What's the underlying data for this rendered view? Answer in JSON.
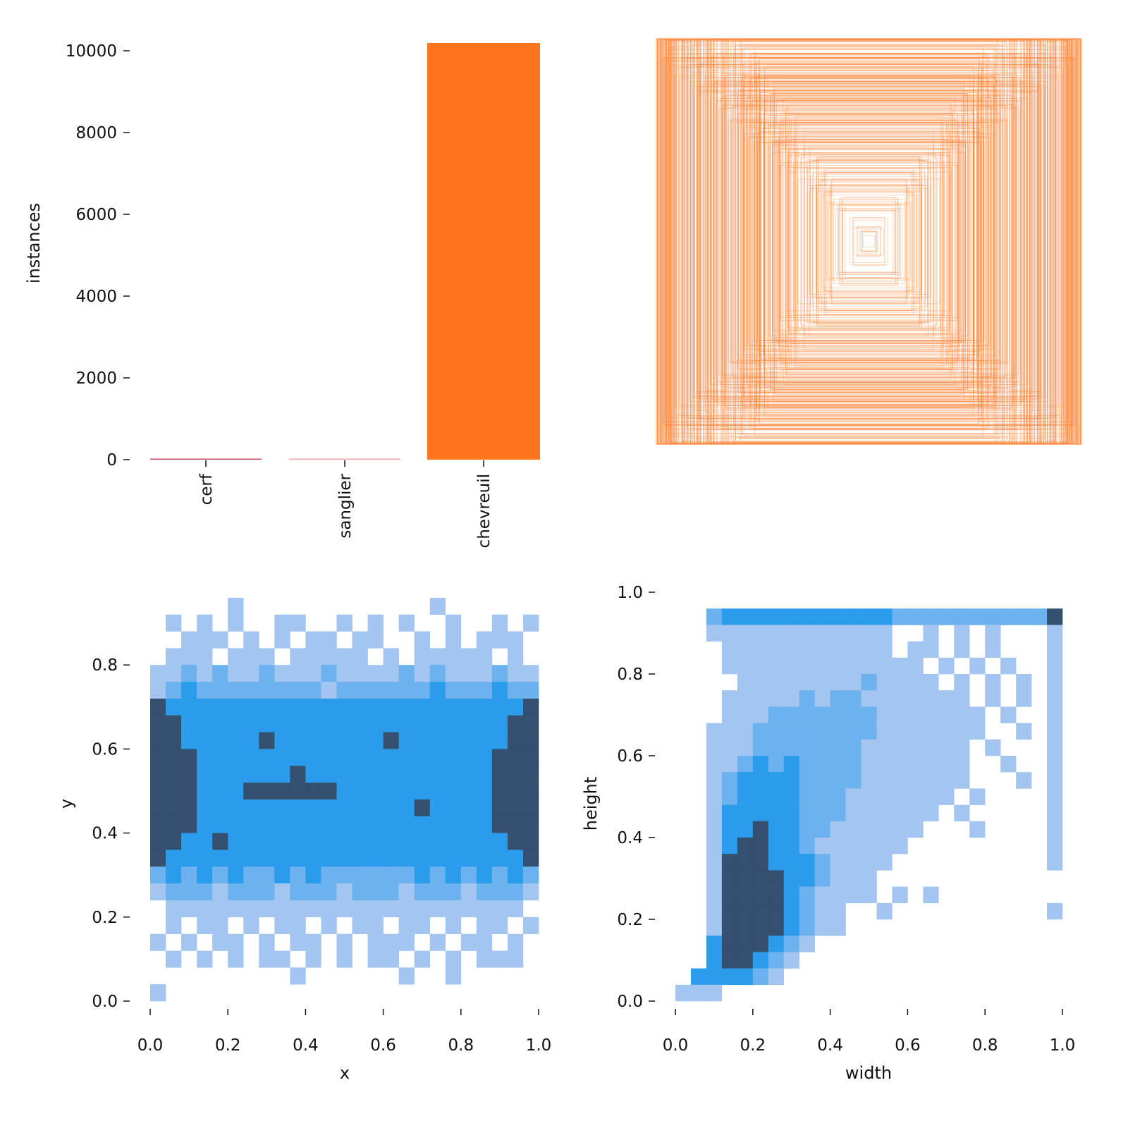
{
  "chart_data": [
    {
      "type": "bar",
      "name": "class-instances",
      "categories": [
        "cerf",
        "sanglier",
        "chevreuil"
      ],
      "values": [
        20,
        5,
        10190
      ],
      "colors": [
        "#d0475a",
        "#f2a3a8",
        "#fe7520"
      ],
      "xlabel": "",
      "ylabel": "instances",
      "ylim": [
        0,
        10200
      ],
      "yticks": [
        0,
        2000,
        4000,
        6000,
        8000,
        10000
      ],
      "ytick_labels": [
        "0",
        "2000",
        "4000",
        "6000",
        "8000",
        "10000"
      ]
    },
    {
      "type": "boxes",
      "name": "bounding-box-overlay",
      "description_values": {
        "box_count_approx": 500,
        "color": "#fe7520"
      },
      "xlim": [
        0,
        1
      ],
      "ylim": [
        0,
        1
      ]
    },
    {
      "type": "heatmap",
      "name": "xy-histogram",
      "xlabel": "x",
      "ylabel": "y",
      "xlim": [
        0,
        1
      ],
      "ylim": [
        0,
        0.96
      ],
      "xticks": [
        "0.0",
        "0.2",
        "0.4",
        "0.6",
        "0.8",
        "1.0"
      ],
      "yticks": [
        "0.0",
        "0.2",
        "0.4",
        "0.6",
        "0.8"
      ],
      "levels_note": "0=empty,1=low,2=medium,3=high,4=very high; rows from top (y=0.96) to bottom (y=0)",
      "grid": [
        "0000010000000000001000000",
        "0101010011001010100100101",
        "0011101010110110010101110",
        "0111011101111101011111010",
        "1121211211121111212111211",
        "1232222222212222223222322",
        "4333333333333333333333334",
        "4433333333333333333333344",
        "4433333433333334333333344",
        "4443333333333333333333444",
        "4443333334333333333333444",
        "4443334444443333333333444",
        "4443333333333333343333444",
        "4443333333333333333333444",
        "4433433333333333333333344",
        "4333333333333333333333334",
        "2323232232322222232323232",
        "1222122212221222122212221",
        "0111111111111111111111110",
        "0101101011010110110101101",
        "1010110101101011101011010",
        "0101010110101011010101110",
        "0000000001000000100100000",
        "1000000000000000000000000"
      ]
    },
    {
      "type": "heatmap",
      "name": "width-height-histogram",
      "xlabel": "width",
      "ylabel": "height",
      "xlim": [
        0,
        1
      ],
      "ylim": [
        0,
        0.96
      ],
      "xticks": [
        "0.0",
        "0.2",
        "0.4",
        "0.6",
        "0.8",
        "1.0"
      ],
      "yticks": [
        "0.0",
        "0.2",
        "0.4",
        "0.6",
        "0.8",
        "1.0"
      ],
      "grid": [
        "0023333333333322222222224",
        "0011111111111100101010001",
        "0001111111111101101010001",
        "0001111111111111010101001",
        "0000111111112111101010101",
        "0001111121221111111010101",
        "0001112222222111111101001",
        "0011122222222111111100101",
        "0011122222221111111010001",
        "0011232322221111111001001",
        "0012333322221111111000101",
        "0012333322211111110100001",
        "0013333322211111101000001",
        "0013343322111111000100001",
        "0013443321111110000000001",
        "0014443332111100000000001",
        "0014444332111000000000000",
        "0014444321111010100000000",
        "0014444321100100000000001",
        "0014444321100000000000000",
        "0034443210000000000000000",
        "0034432100000000000000000",
        "0333321000000000000000000",
        "1110000000000000000000000"
      ]
    }
  ],
  "palette": {
    "level1": "#a3c5f0",
    "level2": "#6cb2ee",
    "level3": "#2b9ceb",
    "level4": "#33506f"
  }
}
